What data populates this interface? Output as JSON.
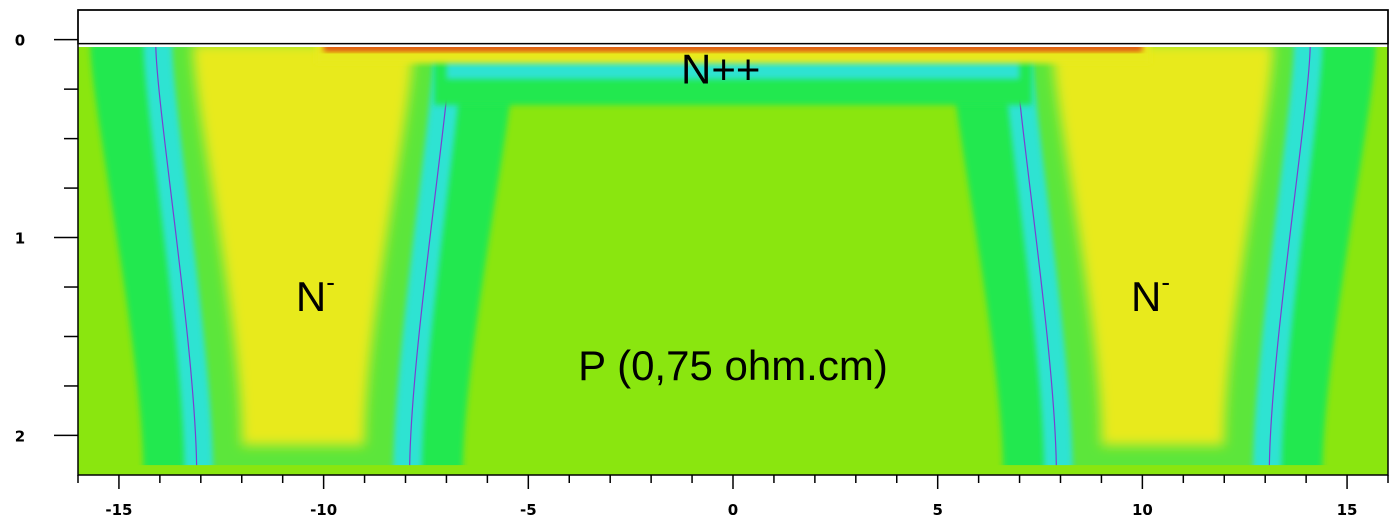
{
  "chart_data": {
    "type": "heatmap",
    "title": "",
    "xlabel": "",
    "ylabel": "",
    "xlim": [
      -16,
      16
    ],
    "ylim": [
      2.2,
      -0.15
    ],
    "x_ticks": [
      "-15",
      "-10",
      "-5",
      "0",
      "5",
      "10",
      "15"
    ],
    "x_tick_values": [
      -15,
      -10,
      -5,
      0,
      5,
      10,
      15
    ],
    "y_ticks": [
      "0",
      "1",
      "2"
    ],
    "y_tick_values": [
      0,
      1,
      2
    ],
    "x_minor_step": 1,
    "y_minor_step": 0.25,
    "oxide_top": -0.15,
    "silicon_surface": 0.02,
    "regions": [
      {
        "label_main": "N++",
        "label_sup": "",
        "x": -0.3,
        "y": 0.15
      },
      {
        "label_main": "N",
        "label_sup": "-",
        "x": -10.2,
        "y": 1.3
      },
      {
        "label_main": "N",
        "label_sup": "-",
        "x": 10.2,
        "y": 1.3
      },
      {
        "label_main": "P (0,75 ohm.cm)",
        "label_sup": "",
        "x": 0,
        "y": 1.65
      }
    ],
    "colors": {
      "oxide": "#ffffff",
      "p_substrate": "#8ae60f",
      "n_plus": "#e04a0a",
      "n_minus": "#e8ea1f",
      "depletion_edge": "#22e850",
      "junction_cyan": "#2ee3d2",
      "junction_line": "#7a3fd0"
    }
  }
}
